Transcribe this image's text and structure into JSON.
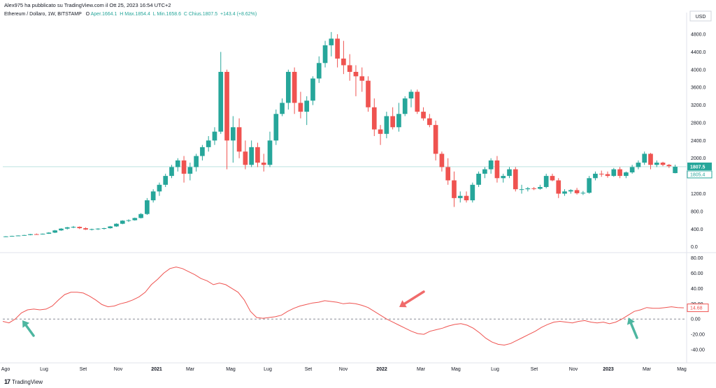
{
  "header": {
    "published_by": "Alex975 ha pubblicato su TradingView.com il Ott 25, 2023 16:54 UTC+2"
  },
  "legend": {
    "symbol": "Ethereum / Dollaro, 1W, BITSTAMP",
    "open_label": "O",
    "open": "Aper.1664.1",
    "high": "H  Max.1854.4",
    "low": "L  Min.1658.6",
    "close": "C  Chius.1807.5",
    "change": "+143.4 (+8.62%)"
  },
  "currency": "USD",
  "footer": {
    "logo": "17",
    "brand": "TradingView"
  },
  "colors": {
    "up": "#26a69a",
    "down": "#ef5350",
    "oscillator": "#ef5350",
    "arrow_up": "#4db6a0",
    "arrow_down": "#f06b6b",
    "price_line": "#26a69a"
  },
  "chart_data": [
    {
      "type": "candlestick",
      "title": "Ethereum / Dollaro, 1W, BITSTAMP",
      "ylim": [
        -100,
        5100
      ],
      "y_ticks": [
        "4800.0",
        "4400.0",
        "4000.0",
        "3600.0",
        "3200.0",
        "2800.0",
        "2400.0",
        "2000.0",
        "1600.0",
        "1200.0",
        "800.0",
        "400.0",
        "0.0"
      ],
      "last_price": "1807.5",
      "second_label": "1805.4",
      "x_labels": [
        "Ago",
        "Lug",
        "Set",
        "Nov",
        "2021",
        "Mar",
        "Mag",
        "Lug",
        "Set",
        "Nov",
        "2022",
        "Mar",
        "Mag",
        "Lug",
        "Set",
        "Nov",
        "2023",
        "Mar",
        "Mag"
      ],
      "series": [
        {
          "values": [
            [
              230,
              240,
              220,
              235
            ],
            [
              235,
              250,
              230,
              245
            ],
            [
              245,
              260,
              240,
              255
            ],
            [
              255,
              270,
              250,
              265
            ],
            [
              265,
              290,
              260,
              285
            ],
            [
              285,
              300,
              270,
              280
            ],
            [
              280,
              300,
              275,
              295
            ],
            [
              295,
              330,
              290,
              320
            ],
            [
              320,
              380,
              310,
              370
            ],
            [
              370,
              420,
              360,
              410
            ],
            [
              410,
              450,
              390,
              440
            ],
            [
              440,
              470,
              420,
              450
            ],
            [
              450,
              460,
              400,
              420
            ],
            [
              420,
              440,
              380,
              390
            ],
            [
              390,
              410,
              370,
              400
            ],
            [
              400,
              420,
              380,
              410
            ],
            [
              410,
              430,
              390,
              420
            ],
            [
              420,
              470,
              410,
              460
            ],
            [
              460,
              530,
              450,
              520
            ],
            [
              520,
              600,
              510,
              590
            ],
            [
              590,
              620,
              560,
              600
            ],
            [
              600,
              660,
              590,
              650
            ],
            [
              650,
              760,
              640,
              740
            ],
            [
              740,
              1100,
              720,
              1050
            ],
            [
              1050,
              1300,
              1000,
              1250
            ],
            [
              1250,
              1450,
              1150,
              1400
            ],
            [
              1400,
              1650,
              1350,
              1600
            ],
            [
              1600,
              1850,
              1550,
              1800
            ],
            [
              1800,
              2000,
              1700,
              1950
            ],
            [
              1950,
              2050,
              1450,
              1650
            ],
            [
              1650,
              1900,
              1500,
              1800
            ],
            [
              1800,
              2100,
              1700,
              2050
            ],
            [
              2050,
              2300,
              1950,
              2250
            ],
            [
              2250,
              2500,
              2150,
              2400
            ],
            [
              2400,
              2700,
              2300,
              2600
            ],
            [
              2600,
              4400,
              2550,
              3950
            ],
            [
              3950,
              4000,
              1750,
              2400
            ],
            [
              2400,
              2950,
              1900,
              2700
            ],
            [
              2700,
              2900,
              2000,
              2150
            ],
            [
              2150,
              2400,
              1750,
              1850
            ],
            [
              1850,
              2400,
              1800,
              2250
            ],
            [
              2250,
              2350,
              1800,
              1900
            ],
            [
              1900,
              2100,
              1700,
              1850
            ],
            [
              1850,
              2600,
              1800,
              2400
            ],
            [
              2400,
              3100,
              2300,
              3000
            ],
            [
              3000,
              3350,
              2950,
              3250
            ],
            [
              3250,
              4000,
              3100,
              3950
            ],
            [
              3950,
              4050,
              3000,
              3250
            ],
            [
              3250,
              3500,
              2900,
              3050
            ],
            [
              3050,
              3400,
              2750,
              3300
            ],
            [
              3300,
              3850,
              3200,
              3800
            ],
            [
              3800,
              4300,
              3700,
              4150
            ],
            [
              4150,
              4650,
              4050,
              4550
            ],
            [
              4550,
              4850,
              4300,
              4700
            ],
            [
              4700,
              4800,
              4050,
              4250
            ],
            [
              4250,
              4650,
              3900,
              4100
            ],
            [
              4100,
              4350,
              3750,
              3950
            ],
            [
              3950,
              4100,
              3400,
              3850
            ],
            [
              3850,
              4050,
              3500,
              3750
            ],
            [
              3750,
              3850,
              3050,
              3150
            ],
            [
              3150,
              3350,
              2500,
              2650
            ],
            [
              2650,
              2750,
              2300,
              2550
            ],
            [
              2550,
              3050,
              2450,
              2950
            ],
            [
              2950,
              3150,
              2650,
              2700
            ],
            [
              2700,
              3250,
              2600,
              3000
            ],
            [
              3000,
              3400,
              2950,
              3350
            ],
            [
              3350,
              3550,
              3150,
              3500
            ],
            [
              3500,
              3550,
              3000,
              3050
            ],
            [
              3050,
              3150,
              2850,
              2900
            ],
            [
              2900,
              3000,
              2700,
              2750
            ],
            [
              2750,
              2850,
              1950,
              2100
            ],
            [
              2100,
              2150,
              1700,
              1800
            ],
            [
              1800,
              2000,
              1400,
              1500
            ],
            [
              1500,
              1700,
              900,
              1100
            ],
            [
              1100,
              1250,
              1000,
              1150
            ],
            [
              1150,
              1250,
              1000,
              1050
            ],
            [
              1050,
              1450,
              1000,
              1400
            ],
            [
              1400,
              1700,
              1350,
              1650
            ],
            [
              1650,
              1800,
              1550,
              1750
            ],
            [
              1750,
              2000,
              1650,
              1950
            ],
            [
              1950,
              2050,
              1450,
              1550
            ],
            [
              1550,
              1650,
              1450,
              1600
            ],
            [
              1600,
              1800,
              1550,
              1750
            ],
            [
              1750,
              1800,
              1250,
              1300
            ],
            [
              1300,
              1400,
              1200,
              1300
            ],
            [
              1300,
              1350,
              1250,
              1320
            ],
            [
              1320,
              1350,
              1280,
              1310
            ],
            [
              1310,
              1400,
              1290,
              1350
            ],
            [
              1350,
              1650,
              1320,
              1600
            ],
            [
              1600,
              1650,
              1480,
              1500
            ],
            [
              1500,
              1550,
              1100,
              1200
            ],
            [
              1200,
              1300,
              1150,
              1250
            ],
            [
              1250,
              1300,
              1200,
              1280
            ],
            [
              1280,
              1330,
              1180,
              1210
            ],
            [
              1210,
              1260,
              1170,
              1220
            ],
            [
              1220,
              1600,
              1200,
              1550
            ],
            [
              1550,
              1700,
              1500,
              1650
            ],
            [
              1650,
              1720,
              1580,
              1640
            ],
            [
              1640,
              1700,
              1560,
              1600
            ],
            [
              1600,
              1780,
              1580,
              1750
            ],
            [
              1750,
              1800,
              1550,
              1600
            ],
            [
              1600,
              1700,
              1550,
              1680
            ],
            [
              1680,
              1850,
              1650,
              1800
            ],
            [
              1800,
              1950,
              1750,
              1900
            ],
            [
              1900,
              2150,
              1850,
              2100
            ],
            [
              2100,
              2120,
              1750,
              1850
            ],
            [
              1850,
              1950,
              1800,
              1900
            ],
            [
              1900,
              1920,
              1820,
              1850
            ],
            [
              1850,
              1870,
              1780,
              1820
            ],
            [
              1664.1,
              1854.4,
              1658.6,
              1807.5
            ]
          ]
        }
      ]
    },
    {
      "type": "line",
      "y_ticks": [
        "80.00",
        "60.00",
        "40.00",
        "20.00",
        "0.00",
        "-20.00",
        "-40.00"
      ],
      "ylim": [
        -50,
        85
      ],
      "last_value": "14.68",
      "series": [
        {
          "values": [
            -3,
            -5,
            0,
            8,
            12,
            13,
            12,
            13,
            17,
            25,
            32,
            35,
            35,
            34,
            30,
            25,
            19,
            16,
            17,
            20,
            22,
            25,
            29,
            35,
            45,
            52,
            60,
            66,
            68,
            66,
            62,
            58,
            53,
            50,
            45,
            47,
            45,
            40,
            35,
            25,
            10,
            2,
            1,
            2,
            3,
            5,
            10,
            14,
            17,
            19,
            21,
            22,
            24,
            23,
            22,
            20,
            21,
            20,
            18,
            15,
            10,
            5,
            0,
            -4,
            -8,
            -12,
            -16,
            -19,
            -20,
            -16,
            -14,
            -12,
            -9,
            -7,
            -6,
            -8,
            -12,
            -18,
            -25,
            -30,
            -33,
            -34,
            -32,
            -28,
            -24,
            -20,
            -16,
            -11,
            -7,
            -4,
            -3,
            -4,
            -5,
            -3,
            -2,
            -4,
            -5,
            -4,
            -6,
            -4,
            0,
            5,
            10,
            12,
            15,
            14,
            14,
            15,
            16,
            15,
            14.68
          ]
        }
      ]
    }
  ]
}
